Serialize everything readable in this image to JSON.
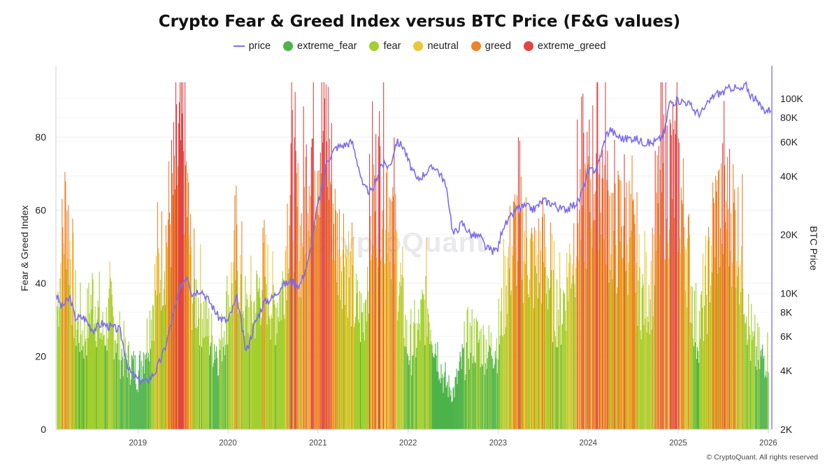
{
  "title": "Crypto Fear & Greed Index versus BTC Price (F&G values)",
  "copyright": "© CryptoQuant. All rights reserved",
  "watermark": "CryptoQuant",
  "legend": [
    {
      "key": "price",
      "label": "price",
      "color": "#7b6cf0",
      "kind": "line"
    },
    {
      "key": "extreme_fear",
      "label": "extreme_fear",
      "color": "#4db34a",
      "kind": "dot"
    },
    {
      "key": "fear",
      "label": "fear",
      "color": "#a3cf2f",
      "kind": "dot"
    },
    {
      "key": "neutral",
      "label": "neutral",
      "color": "#ecc636",
      "kind": "dot"
    },
    {
      "key": "greed",
      "label": "greed",
      "color": "#ee8328",
      "kind": "dot"
    },
    {
      "key": "extreme_greed",
      "label": "extreme_greed",
      "color": "#e04444",
      "kind": "dot"
    }
  ],
  "chart_data": {
    "type": "bar",
    "title": "Crypto Fear & Greed Index versus BTC Price (F&G values)",
    "x_ticks": [
      "2019",
      "2020",
      "2021",
      "2022",
      "2023",
      "2024",
      "2025",
      "2026"
    ],
    "x_range": [
      2018.09,
      2026.04
    ],
    "left_axis": {
      "label": "Fear & Greed Index",
      "ticks": [
        "0",
        "20",
        "40",
        "60",
        "80"
      ],
      "range": [
        0,
        100
      ]
    },
    "right_axis": {
      "label": "BTC Price",
      "scale": "log",
      "ticks": [
        "2K",
        "4K",
        "6K",
        "8K",
        "10K",
        "20K",
        "40K",
        "60K",
        "80K",
        "100K"
      ],
      "tick_values": [
        2000,
        4000,
        6000,
        8000,
        10000,
        20000,
        40000,
        60000,
        80000,
        100000
      ],
      "range": [
        2000,
        160000
      ]
    },
    "grid": true,
    "legend_position": "top",
    "bars_fg": {
      "name": "F&G values",
      "x": [
        2018.1,
        2018.2,
        2018.3,
        2018.4,
        2018.5,
        2018.6,
        2018.7,
        2018.8,
        2018.9,
        2019.0,
        2019.1,
        2019.2,
        2019.3,
        2019.4,
        2019.5,
        2019.6,
        2019.7,
        2019.8,
        2019.9,
        2020.0,
        2020.1,
        2020.2,
        2020.3,
        2020.4,
        2020.5,
        2020.6,
        2020.7,
        2020.8,
        2020.9,
        2021.0,
        2021.1,
        2021.2,
        2021.3,
        2021.4,
        2021.5,
        2021.6,
        2021.7,
        2021.8,
        2021.9,
        2022.0,
        2022.1,
        2022.2,
        2022.3,
        2022.4,
        2022.5,
        2022.6,
        2022.7,
        2022.8,
        2022.9,
        2023.0,
        2023.1,
        2023.2,
        2023.3,
        2023.4,
        2023.5,
        2023.6,
        2023.7,
        2023.8,
        2023.9,
        2024.0,
        2024.1,
        2024.2,
        2024.3,
        2024.4,
        2024.5,
        2024.6,
        2024.7,
        2024.8,
        2024.9,
        2025.0,
        2025.1,
        2025.2,
        2025.3,
        2025.4,
        2025.5,
        2025.6,
        2025.7,
        2025.8,
        2025.9,
        2026.0
      ],
      "values": [
        40,
        74,
        35,
        30,
        44,
        30,
        38,
        25,
        22,
        18,
        30,
        48,
        60,
        78,
        95,
        45,
        40,
        30,
        25,
        42,
        55,
        36,
        40,
        52,
        38,
        45,
        84,
        60,
        90,
        95,
        95,
        60,
        60,
        40,
        35,
        72,
        84,
        75,
        48,
        25,
        30,
        42,
        28,
        15,
        12,
        22,
        30,
        28,
        26,
        28,
        52,
        65,
        60,
        52,
        58,
        42,
        38,
        55,
        72,
        76,
        90,
        74,
        62,
        70,
        58,
        42,
        48,
        80,
        84,
        80,
        58,
        30,
        42,
        68,
        72,
        70,
        58,
        28,
        22,
        25
      ]
    },
    "series_price": {
      "name": "price",
      "x": [
        2018.09,
        2018.15,
        2018.2,
        2018.25,
        2018.3,
        2018.4,
        2018.5,
        2018.6,
        2018.7,
        2018.8,
        2018.9,
        2019.0,
        2019.1,
        2019.2,
        2019.3,
        2019.4,
        2019.48,
        2019.55,
        2019.6,
        2019.7,
        2019.8,
        2019.9,
        2020.0,
        2020.1,
        2020.2,
        2020.3,
        2020.4,
        2020.5,
        2020.6,
        2020.7,
        2020.8,
        2020.9,
        2021.0,
        2021.05,
        2021.1,
        2021.2,
        2021.3,
        2021.38,
        2021.45,
        2021.5,
        2021.6,
        2021.7,
        2021.8,
        2021.87,
        2021.95,
        2022.0,
        2022.1,
        2022.2,
        2022.3,
        2022.4,
        2022.45,
        2022.5,
        2022.6,
        2022.7,
        2022.8,
        2022.87,
        2022.95,
        2023.0,
        2023.05,
        2023.1,
        2023.2,
        2023.3,
        2023.4,
        2023.5,
        2023.6,
        2023.7,
        2023.8,
        2023.9,
        2024.0,
        2024.1,
        2024.2,
        2024.25,
        2024.3,
        2024.4,
        2024.5,
        2024.6,
        2024.7,
        2024.8,
        2024.85,
        2024.9,
        2025.0,
        2025.1,
        2025.2,
        2025.25,
        2025.3,
        2025.4,
        2025.5,
        2025.6,
        2025.7,
        2025.75,
        2025.8,
        2025.85,
        2025.9,
        2025.95,
        2026.0,
        2026.04
      ],
      "values": [
        10000,
        8500,
        9000,
        9500,
        7500,
        7500,
        6500,
        7000,
        6700,
        6500,
        4000,
        3600,
        3500,
        4000,
        5200,
        8000,
        11000,
        12500,
        10000,
        10500,
        9000,
        7500,
        7200,
        9500,
        5000,
        7000,
        9000,
        9500,
        11000,
        11500,
        11000,
        15000,
        29000,
        35000,
        48000,
        56000,
        58000,
        60000,
        45000,
        35000,
        33000,
        46000,
        45000,
        60000,
        57000,
        48000,
        38000,
        42000,
        45000,
        38000,
        30000,
        20000,
        23000,
        20000,
        19500,
        17000,
        16500,
        17000,
        22000,
        23000,
        27000,
        28000,
        27000,
        30000,
        29000,
        27000,
        27500,
        30000,
        42000,
        44000,
        65000,
        70000,
        65000,
        62000,
        63000,
        60000,
        59000,
        62000,
        68000,
        95000,
        98000,
        96000,
        85000,
        84000,
        90000,
        105000,
        108000,
        115000,
        110000,
        118000,
        105000,
        100000,
        92000,
        88000,
        87000,
        90000
      ]
    }
  }
}
